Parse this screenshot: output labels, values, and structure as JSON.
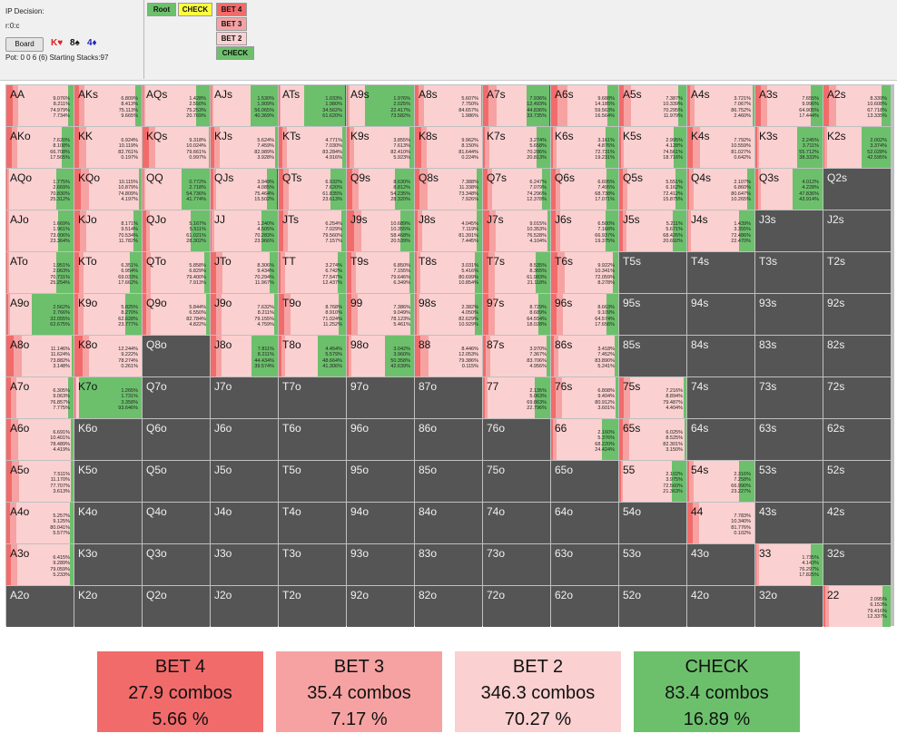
{
  "info": {
    "decision": "IP Decision:",
    "node": "r:0:c",
    "board_label": "Board",
    "pot_line": "Pot: 0 0 6 (6) Starting Stacks:97",
    "cards": [
      {
        "text": "K♥",
        "color": "#e02020"
      },
      {
        "text": "8♠",
        "color": "#111111"
      },
      {
        "text": "4♦",
        "color": "#2020c0"
      }
    ]
  },
  "toolbar": {
    "root": "Root",
    "check_tab": "CHECK",
    "bet4": "BET 4",
    "bet3": "BET 3",
    "bet2": "BET 2",
    "check": "CHECK"
  },
  "colors": {
    "bet4": "#f26b6b",
    "bet3": "#f6a2a2",
    "bet2": "#fbd0d0",
    "check": "#6cc06c",
    "empty": "#555555"
  },
  "matrix": [
    [
      [
        "AA",
        [
          9.076,
          8.211,
          74.979,
          7.734
        ]
      ],
      [
        "AKs",
        [
          6.809,
          8.413,
          75.113,
          9.665
        ]
      ],
      [
        "AQs",
        [
          1.428,
          2.55,
          75.253,
          20.769
        ]
      ],
      [
        "AJs",
        [
          1.53,
          1.909,
          56.065,
          40.369
        ]
      ],
      [
        "ATs",
        [
          1.033,
          1.98,
          34.562,
          61.62
        ]
      ],
      [
        "A9s",
        [
          1.976,
          2.025,
          22.417,
          73.582
        ]
      ],
      [
        "A8s",
        [
          5.607,
          7.75,
          84.657,
          1.986
        ]
      ],
      [
        "A7s",
        [
          7.936,
          12.493,
          44.836,
          33.735
        ]
      ],
      [
        "A6s",
        [
          9.688,
          14.185,
          59.563,
          16.564
        ]
      ],
      [
        "A5s",
        [
          7.387,
          10.339,
          70.295,
          11.979
        ]
      ],
      [
        "A4s",
        [
          3.721,
          7.067,
          86.752,
          2.46
        ]
      ],
      [
        "A3s",
        [
          7.655,
          9.996,
          64.905,
          17.444
        ]
      ],
      [
        "A2s",
        [
          8.339,
          10.608,
          67.718,
          13.335
        ]
      ]
    ],
    [
      [
        "AKo",
        [
          7.62,
          8.108,
          66.708,
          17.565
        ]
      ],
      [
        "KK",
        [
          6.924,
          10.119,
          82.761,
          0.197
        ]
      ],
      [
        "KQs",
        [
          9.318,
          10.024,
          79.661,
          0.997
        ]
      ],
      [
        "KJs",
        [
          5.624,
          7.459,
          82.989,
          3.928
        ]
      ],
      [
        "KTs",
        [
          4.771,
          7.03,
          83.284,
          4.916
        ]
      ],
      [
        "K9s",
        [
          3.855,
          7.613,
          82.41,
          5.923
        ]
      ],
      [
        "K8s",
        [
          9.962,
          8.15,
          81.644,
          0.224
        ]
      ],
      [
        "K7s",
        [
          3.274,
          5.658,
          70.286,
          20.813
        ]
      ],
      [
        "K6s",
        [
          3.161,
          4.876,
          72.731,
          19.231
        ]
      ],
      [
        "K5s",
        [
          2.995,
          4.128,
          74.561,
          18.716
        ]
      ],
      [
        "K4s",
        [
          7.792,
          10.559,
          81.027,
          0.642
        ]
      ],
      [
        "K3s",
        [
          2.245,
          3.711,
          55.712,
          38.333
        ]
      ],
      [
        "K2s",
        [
          2.002,
          3.374,
          52.028,
          42.595
        ]
      ]
    ],
    [
      [
        "AQo",
        [
          1.775,
          2.669,
          70.83,
          25.312
        ]
      ],
      [
        "KQo",
        [
          10.115,
          10.879,
          74.809,
          4.197
        ]
      ],
      [
        "QQ",
        [
          0.772,
          2.718,
          54.736,
          41.774
        ]
      ],
      [
        "QJs",
        [
          3.949,
          4.085,
          75.464,
          15.502
        ]
      ],
      [
        "QTs",
        [
          6.932,
          7.62,
          61.835,
          23.613
        ]
      ],
      [
        "Q9s",
        [
          8.63,
          8.812,
          54.235,
          28.32
        ]
      ],
      [
        "Q8s",
        [
          7.388,
          11.338,
          73.348,
          7.926
        ]
      ],
      [
        "Q7s",
        [
          6.247,
          7.079,
          74.296,
          12.378
        ]
      ],
      [
        "Q6s",
        [
          6.695,
          7.495,
          68.738,
          17.071
        ]
      ],
      [
        "Q5s",
        [
          5.551,
          6.162,
          72.412,
          15.875
        ]
      ],
      [
        "Q4s",
        [
          2.107,
          6.86,
          80.647,
          10.265
        ]
      ],
      [
        "Q3s",
        [
          4.012,
          4.228,
          47.836,
          43.914
        ]
      ],
      [
        "Q2s",
        null
      ]
    ],
    [
      [
        "AJo",
        [
          1.669,
          1.961,
          73.006,
          23.364
        ]
      ],
      [
        "KJo",
        [
          8.171,
          9.514,
          70.534,
          11.782
        ]
      ],
      [
        "QJo",
        [
          5.167,
          5.511,
          61.021,
          28.302
        ]
      ],
      [
        "JJ",
        [
          1.24,
          4.505,
          70.283,
          23.966
        ]
      ],
      [
        "JTs",
        [
          6.254,
          7.029,
          79.56,
          7.157
        ]
      ],
      [
        "J9s",
        [
          10.689,
          10.355,
          58.468,
          20.539
        ]
      ],
      [
        "J8s",
        [
          4.045,
          7.119,
          81.391,
          7.445
        ]
      ],
      [
        "J7s",
        [
          9.015,
          10.353,
          76.528,
          4.104
        ]
      ],
      [
        "J6s",
        [
          6.5,
          7.168,
          66.937,
          19.375
        ]
      ],
      [
        "J5s",
        [
          5.211,
          5.671,
          68.426,
          20.692
        ]
      ],
      [
        "J4s",
        [
          1.439,
          3.355,
          72.486,
          22.47
        ]
      ],
      [
        "J3s",
        null
      ],
      [
        "J2s",
        null
      ]
    ],
    [
      [
        "ATo",
        [
          1.951,
          2.063,
          70.731,
          25.254
        ]
      ],
      [
        "KTo",
        [
          6.351,
          6.954,
          69.033,
          17.662
        ]
      ],
      [
        "QTo",
        [
          5.858,
          6.829,
          79.4,
          7.913
        ]
      ],
      [
        "JTo",
        [
          8.306,
          9.434,
          70.294,
          11.967
        ]
      ],
      [
        "TT",
        [
          3.274,
          6.742,
          77.547,
          12.437
        ]
      ],
      [
        "T9s",
        [
          6.85,
          7.155,
          79.646,
          6.349
        ]
      ],
      [
        "T8s",
        [
          3.031,
          5.416,
          80.699,
          10.854
        ]
      ],
      [
        "T7s",
        [
          8.535,
          8.365,
          61.983,
          21.118
        ]
      ],
      [
        "T6s",
        [
          9.922,
          10.341,
          72.059,
          8.278
        ]
      ],
      [
        "T5s",
        null
      ],
      [
        "T4s",
        null
      ],
      [
        "T3s",
        null
      ],
      [
        "T2s",
        null
      ]
    ],
    [
      [
        "A9o",
        [
          2.562,
          2.766,
          32.055,
          62.675
        ]
      ],
      [
        "K9o",
        [
          5.825,
          8.27,
          62.628,
          23.777
        ]
      ],
      [
        "Q9o",
        [
          5.844,
          6.55,
          82.784,
          4.822
        ]
      ],
      [
        "J9o",
        [
          7.632,
          8.211,
          79.155,
          4.759
        ]
      ],
      [
        "T9o",
        [
          8.768,
          8.91,
          71.024,
          11.252
        ]
      ],
      [
        "99",
        [
          7.386,
          9.049,
          78.123,
          5.461
        ]
      ],
      [
        "98s",
        [
          2.382,
          4.05,
          82.629,
          10.929
        ]
      ],
      [
        "97s",
        [
          8.729,
          8.689,
          64.554,
          18.028
        ]
      ],
      [
        "96s",
        [
          8.663,
          9.109,
          64.574,
          17.656
        ]
      ],
      [
        "95s",
        null
      ],
      [
        "94s",
        null
      ],
      [
        "93s",
        null
      ],
      [
        "92s",
        null
      ]
    ],
    [
      [
        "A8o",
        [
          11.146,
          11.624,
          73.882,
          3.148
        ]
      ],
      [
        "K8o",
        [
          12.244,
          9.222,
          78.274,
          0.261
        ]
      ],
      [
        "Q8o",
        null
      ],
      [
        "J8o",
        [
          7.811,
          8.211,
          44.434,
          39.574
        ]
      ],
      [
        "T8o",
        [
          4.454,
          5.579,
          48.664,
          41.306
        ]
      ],
      [
        "98o",
        [
          3.042,
          3.96,
          50.358,
          42.639
        ]
      ],
      [
        "88",
        [
          8.446,
          12.053,
          79.386,
          0.115
        ]
      ],
      [
        "87s",
        [
          3.97,
          7.367,
          83.706,
          4.956
        ]
      ],
      [
        "86s",
        [
          3.418,
          7.452,
          83.89,
          5.241
        ]
      ],
      [
        "85s",
        null
      ],
      [
        "84s",
        null
      ],
      [
        "83s",
        null
      ],
      [
        "82s",
        null
      ]
    ],
    [
      [
        "A7o",
        [
          6.305,
          9.063,
          76.857,
          7.775
        ]
      ],
      [
        "K7o",
        [
          1.265,
          1.731,
          3.358,
          93.646
        ]
      ],
      [
        "Q7o",
        null
      ],
      [
        "J7o",
        null
      ],
      [
        "T7o",
        null
      ],
      [
        "97o",
        null
      ],
      [
        "87o",
        null
      ],
      [
        "77",
        [
          2.135,
          5.063,
          69.863,
          22.796
        ]
      ],
      [
        "76s",
        [
          6.808,
          9.404,
          80.912,
          3.601
        ]
      ],
      [
        "75s",
        [
          7.216,
          8.894,
          79.487,
          4.404
        ]
      ],
      [
        "74s",
        null
      ],
      [
        "73s",
        null
      ],
      [
        "72s",
        null
      ]
    ],
    [
      [
        "A6o",
        [
          6.691,
          10.401,
          78.489,
          4.419
        ]
      ],
      [
        "K6o",
        null
      ],
      [
        "Q6o",
        null
      ],
      [
        "J6o",
        null
      ],
      [
        "T6o",
        null
      ],
      [
        "96o",
        null
      ],
      [
        "86o",
        null
      ],
      [
        "76o",
        null
      ],
      [
        "66",
        [
          2.16,
          5.376,
          68.22,
          24.424
        ]
      ],
      [
        "65s",
        [
          6.025,
          8.525,
          82.301,
          3.15
        ]
      ],
      [
        "64s",
        null
      ],
      [
        "63s",
        null
      ],
      [
        "62s",
        null
      ]
    ],
    [
      [
        "A5o",
        [
          7.511,
          11.17,
          77.707,
          3.613
        ]
      ],
      [
        "K5o",
        null
      ],
      [
        "Q5o",
        null
      ],
      [
        "J5o",
        null
      ],
      [
        "T5o",
        null
      ],
      [
        "95o",
        null
      ],
      [
        "85o",
        null
      ],
      [
        "75o",
        null
      ],
      [
        "65o",
        null
      ],
      [
        "55",
        [
          2.102,
          3.975,
          72.56,
          21.363
        ]
      ],
      [
        "54s",
        [
          2.316,
          7.258,
          66.99,
          23.227
        ]
      ],
      [
        "53s",
        null
      ],
      [
        "52s",
        null
      ]
    ],
    [
      [
        "A4o",
        [
          5.257,
          9.125,
          80.041,
          5.577
        ]
      ],
      [
        "K4o",
        null
      ],
      [
        "Q4o",
        null
      ],
      [
        "J4o",
        null
      ],
      [
        "T4o",
        null
      ],
      [
        "94o",
        null
      ],
      [
        "84o",
        null
      ],
      [
        "74o",
        null
      ],
      [
        "64o",
        null
      ],
      [
        "54o",
        null
      ],
      [
        "44",
        [
          7.783,
          10.34,
          81.776,
          0.102
        ]
      ],
      [
        "43s",
        null
      ],
      [
        "42s",
        null
      ]
    ],
    [
      [
        "A3o",
        [
          6.415,
          9.289,
          79.059,
          5.233
        ]
      ],
      [
        "K3o",
        null
      ],
      [
        "Q3o",
        null
      ],
      [
        "J3o",
        null
      ],
      [
        "T3o",
        null
      ],
      [
        "93o",
        null
      ],
      [
        "83o",
        null
      ],
      [
        "73o",
        null
      ],
      [
        "63o",
        null
      ],
      [
        "53o",
        null
      ],
      [
        "43o",
        null
      ],
      [
        "33",
        [
          1.735,
          4.143,
          76.297,
          17.825
        ]
      ],
      [
        "32s",
        null
      ]
    ],
    [
      [
        "A2o",
        null
      ],
      [
        "K2o",
        null
      ],
      [
        "Q2o",
        null
      ],
      [
        "J2o",
        null
      ],
      [
        "T2o",
        null
      ],
      [
        "92o",
        null
      ],
      [
        "82o",
        null
      ],
      [
        "72o",
        null
      ],
      [
        "62o",
        null
      ],
      [
        "52o",
        null
      ],
      [
        "42o",
        null
      ],
      [
        "32o",
        null
      ],
      [
        "22",
        [
          2.095,
          6.153,
          79.416,
          12.337
        ]
      ]
    ]
  ],
  "summary": [
    {
      "label": "BET 4",
      "combos": "27.9 combos",
      "pct": "5.66 %",
      "color": "#f26b6b"
    },
    {
      "label": "BET 3",
      "combos": "35.4 combos",
      "pct": "7.17 %",
      "color": "#f6a2a2"
    },
    {
      "label": "BET 2",
      "combos": "346.3 combos",
      "pct": "70.27 %",
      "color": "#fbd0d0"
    },
    {
      "label": "CHECK",
      "combos": "83.4 combos",
      "pct": "16.89 %",
      "color": "#6cc06c"
    }
  ]
}
